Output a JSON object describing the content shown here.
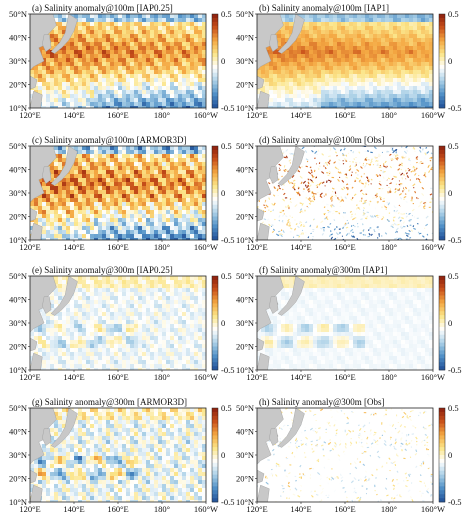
{
  "colors": {
    "land": "#c8c8c8",
    "frame": "#222222",
    "scale": [
      "#1f4e96",
      "#4f8fc6",
      "#a9cfe6",
      "#ffffff",
      "#fbe58a",
      "#f4a742",
      "#c8501a",
      "#8a1e0e"
    ]
  },
  "axes": {
    "x_ticks": [
      "120°E",
      "140°E",
      "160°E",
      "180°",
      "160°W"
    ],
    "y_ticks": [
      "50°N",
      "40°N",
      "30°N",
      "20°N",
      "10°N"
    ]
  },
  "colorbar": {
    "ticks": [
      "0.5",
      "0",
      "-0.5"
    ]
  },
  "panels": [
    {
      "title": "(a) Salinity anomaly@100m [IAP0.25]",
      "depth": "100m",
      "source": "IAP0.25"
    },
    {
      "title": "(b) Salinity anomaly@100m [IAP1]",
      "depth": "100m",
      "source": "IAP1"
    },
    {
      "title": "(c) Salinity anomaly@100m [ARMOR3D]",
      "depth": "100m",
      "source": "ARMOR3D"
    },
    {
      "title": "(d) Salinity anomaly@100m [Obs]",
      "depth": "100m",
      "source": "Obs"
    },
    {
      "title": "(e) Salinity anomaly@300m [IAP0.25]",
      "depth": "300m",
      "source": "IAP0.25"
    },
    {
      "title": "(f) Salinity anomaly@300m [IAP1]",
      "depth": "300m",
      "source": "IAP1"
    },
    {
      "title": "(g) Salinity anomaly@300m [ARMOR3D]",
      "depth": "300m",
      "source": "ARMOR3D"
    },
    {
      "title": "(h) Salinity anomaly@300m [Obs]",
      "depth": "300m",
      "source": "Obs"
    }
  ]
}
